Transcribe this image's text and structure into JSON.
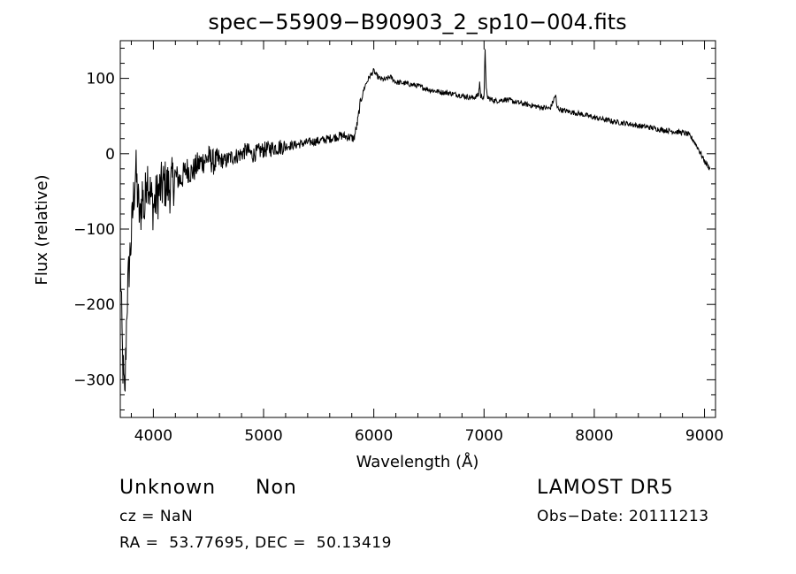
{
  "chart_data": {
    "type": "line",
    "title": "spec−55909−B90903_2_sp10−004.fits",
    "xlabel": "Wavelength (Å)",
    "ylabel": "Flux (relative)",
    "xlim": [
      3700,
      9100
    ],
    "ylim": [
      -350,
      150
    ],
    "x_ticks": [
      4000,
      5000,
      6000,
      7000,
      8000,
      9000
    ],
    "y_ticks": [
      100,
      0,
      -100,
      -200,
      -300
    ],
    "y_tick_labels": [
      "100",
      "0",
      "−100",
      "−200",
      "−300"
    ],
    "grid": false,
    "series": [
      {
        "x": [
          3700,
          3720,
          3740,
          3760,
          3780,
          3800,
          3820,
          3840,
          3860,
          3880,
          3900,
          3920,
          3940,
          3960,
          3980,
          4000,
          4050,
          4100,
          4150,
          4200,
          4250,
          4300,
          4350,
          4400,
          4450,
          4500,
          4550,
          4600,
          4650,
          4700,
          4750,
          4800,
          4850,
          4900,
          4950,
          5000,
          5100,
          5200,
          5300,
          5400,
          5500,
          5600,
          5700,
          5780,
          5820,
          5850,
          5880,
          5920,
          5960,
          6000,
          6020,
          6050,
          6100,
          6150,
          6200,
          6300,
          6400,
          6500,
          6600,
          6700,
          6800,
          6900,
          6950,
          6960,
          6970,
          7000,
          7010,
          7020,
          7030,
          7050,
          7100,
          7200,
          7300,
          7400,
          7500,
          7600,
          7650,
          7660,
          7700,
          7800,
          7900,
          8000,
          8100,
          8200,
          8300,
          8400,
          8500,
          8600,
          8700,
          8800,
          8850,
          8900,
          8950,
          9000,
          9050
        ],
        "y": [
          -140,
          -270,
          -330,
          -200,
          -150,
          -110,
          -60,
          -20,
          -60,
          -90,
          -50,
          -80,
          -20,
          -40,
          -60,
          -70,
          -50,
          -40,
          -45,
          -30,
          -35,
          -20,
          -25,
          -15,
          -10,
          -5,
          -12,
          -8,
          -10,
          -5,
          -3,
          0,
          5,
          -2,
          3,
          5,
          8,
          10,
          12,
          15,
          17,
          20,
          24,
          22,
          20,
          40,
          70,
          90,
          102,
          110,
          105,
          100,
          98,
          102,
          95,
          93,
          90,
          85,
          82,
          80,
          77,
          74,
          78,
          95,
          76,
          75,
          140,
          85,
          75,
          73,
          70,
          72,
          68,
          65,
          62,
          60,
          78,
          62,
          58,
          55,
          52,
          48,
          45,
          42,
          40,
          37,
          35,
          32,
          30,
          28,
          26,
          18,
          5,
          -10,
          -20
        ]
      }
    ]
  },
  "footer": {
    "object_class": "Unknown",
    "subclass": "Non",
    "survey": "LAMOST DR5",
    "cz": "cz = NaN",
    "obs_date": "Obs−Date: 20111213",
    "coords": "RA =  53.77695, DEC =  50.13419"
  }
}
